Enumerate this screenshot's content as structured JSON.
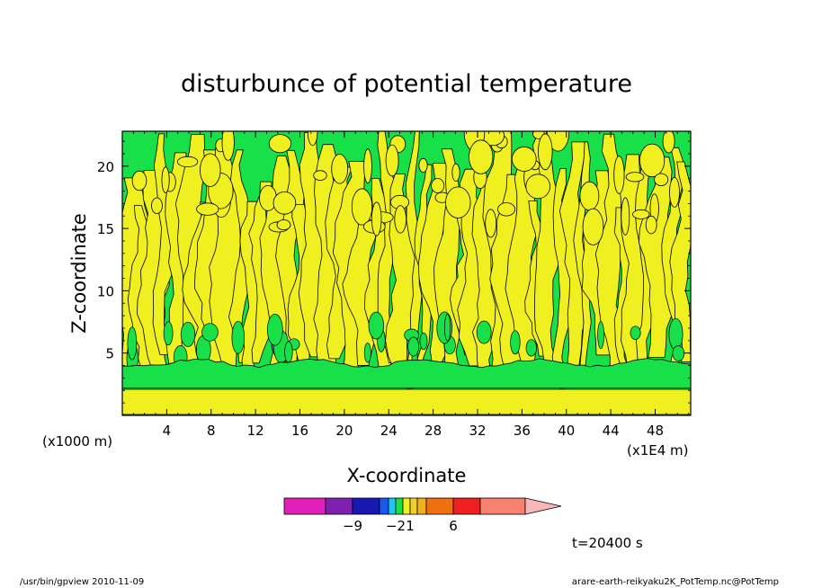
{
  "chart_data": {
    "type": "heatmap",
    "title": "disturbunce of potential temperature",
    "xlabel": "X-coordinate",
    "ylabel": "Z-coordinate",
    "x_unit_label": "(x1E4 m)",
    "y_unit_label": "(x1000 m)",
    "x_ticks": [
      4,
      8,
      12,
      16,
      20,
      24,
      28,
      32,
      36,
      40,
      44,
      48
    ],
    "y_ticks": [
      5,
      10,
      15,
      20
    ],
    "xlim": [
      0,
      51.2
    ],
    "ylim": [
      0,
      22.8
    ],
    "colorbar": {
      "colors": [
        "#e020b8",
        "#8020b0",
        "#1818b0",
        "#1858f0",
        "#18c8f0",
        "#18e048",
        "#f0f020",
        "#f0d020",
        "#f0b020",
        "#f07010",
        "#f02020",
        "#f88070",
        "#f8b8b8"
      ],
      "labels": [
        {
          "text": "−9",
          "after_index": 1
        },
        {
          "text": "−2",
          "after_index": 4
        },
        {
          "text": "1",
          "after_index": 6
        },
        {
          "text": "6",
          "after_index": 9
        }
      ]
    },
    "bands": [
      {
        "z_min": 0,
        "z_max": 2.2,
        "color": "#18e048"
      },
      {
        "z_min": 2.2,
        "z_max": 4.2,
        "color": "#f0f020"
      },
      {
        "z_min": 4.2,
        "z_max": 22.8,
        "color": "#18e048",
        "pattern": "mixed yellow plumes"
      }
    ],
    "plume_color": "#f0f020",
    "background_color": "#18e048"
  },
  "annotations": {
    "time": "t=20400 s",
    "footer_left": "/usr/bin/gpview   2010-11-09",
    "footer_right": "arare-earth-reikyaku2K_PotTemp.nc@PotTemp"
  }
}
